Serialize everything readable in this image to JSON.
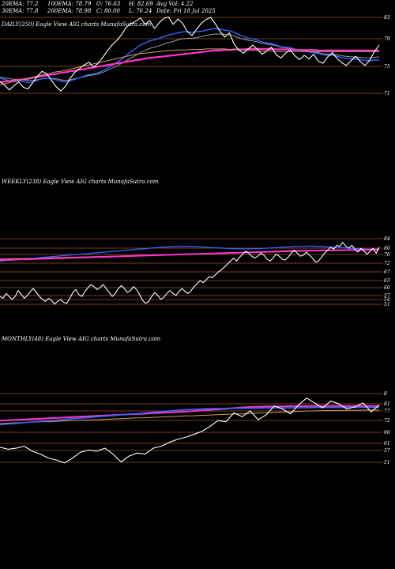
{
  "header": {
    "ema20": "20EMA: 77.2",
    "ema100": "100EMA: 78.79",
    "open": "O: 76.63",
    "high": "H: 82.69",
    "avgvol": "Avg Vol: 4.22",
    "ema30": "30EMA: 77.8",
    "ema200": "200EMA: 78.98",
    "close": "C: 80.00",
    "low": "L: 76.24",
    "date": "Date: Fri 18 Jul 2025"
  },
  "colors": {
    "background": "#000000",
    "price": "#ffffff",
    "ema_blue": "#3366ff",
    "ema_magenta": "#ff33cc",
    "ema_tan": "#c8a060",
    "ema_gray": "#aaaaaa",
    "gridline": "#a0522d"
  },
  "chart_data": [
    {
      "type": "line",
      "title": "DAILY(250) Eagle  View AIG charts MunafaSutra.com",
      "y_ticks": [
        83,
        79,
        75,
        71
      ],
      "ylim": [
        69.5,
        85.5
      ],
      "series": [
        {
          "values": [
            73.2,
            72.5,
            71.6,
            72.4,
            73.1,
            72.1,
            71.8,
            73.0,
            74.2,
            75.1,
            74.6,
            73.4,
            72.2,
            71.4,
            72.3,
            73.8,
            74.9,
            75.6,
            76.3,
            76.8,
            75.9,
            76.6,
            77.8,
            79.0,
            80.1,
            80.9,
            82.0,
            83.4,
            84.0,
            84.5,
            85.1,
            83.9,
            84.6,
            83.1,
            84.2,
            85.0,
            85.3,
            83.9,
            84.9,
            84.1,
            82.6,
            81.8,
            83.0,
            84.1,
            84.8,
            85.2,
            84.0,
            82.6,
            81.5,
            82.3,
            80.2,
            79.1,
            78.5,
            79.3,
            80.0,
            79.2,
            78.3,
            78.9,
            79.6,
            78.2,
            77.6,
            78.5,
            79.1,
            78.0,
            77.3,
            78.1,
            77.4,
            78.3,
            77.0,
            76.6,
            77.8,
            78.6,
            77.5,
            76.7,
            76.2,
            77.1,
            77.9,
            76.9,
            76.2,
            77.2,
            78.8,
            80.0
          ]
        },
        {
          "values": [
            72.5,
            72.8,
            73.0,
            73.2,
            73.4,
            73.6,
            73.8,
            74.0,
            74.2,
            74.4,
            74.6,
            74.8,
            75.0,
            75.1,
            75.3,
            75.5,
            75.7,
            75.9,
            76.1,
            76.3,
            76.5,
            76.7,
            76.9,
            77.1,
            77.3,
            77.5,
            77.7,
            77.9,
            78.1,
            78.3,
            78.4,
            78.5,
            78.6,
            78.7,
            78.8,
            78.9,
            79.0,
            79.0,
            79.1,
            79.1,
            79.1,
            79.2,
            79.2,
            79.2,
            79.3,
            79.3,
            79.3,
            79.3,
            79.3,
            79.2,
            79.2,
            79.1,
            79.1,
            79.0,
            79.0,
            79.0,
            78.9,
            78.9,
            78.9,
            78.8,
            78.8,
            78.8,
            78.8,
            78.8,
            78.8,
            78.8,
            78.8,
            78.8,
            78.8,
            78.8,
            78.8,
            78.8,
            78.8,
            78.8,
            78.8,
            78.8,
            78.8,
            78.8,
            78.8,
            78.8,
            78.8,
            78.79
          ]
        },
        {
          "values": [
            73.0,
            73.2,
            73.3,
            73.4,
            73.5,
            73.6,
            73.7,
            73.9,
            74.0,
            74.2,
            74.3,
            74.5,
            74.6,
            74.8,
            74.9,
            75.1,
            75.2,
            75.4,
            75.5,
            75.7,
            75.8,
            76.0,
            76.1,
            76.3,
            76.4,
            76.6,
            76.7,
            76.9,
            77.0,
            77.2,
            77.3,
            77.5,
            77.6,
            77.7,
            77.8,
            77.9,
            78.0,
            78.1,
            78.2,
            78.3,
            78.4,
            78.5,
            78.6,
            78.7,
            78.8,
            78.9,
            79.0,
            79.0,
            79.1,
            79.1,
            79.2,
            79.2,
            79.2,
            79.3,
            79.3,
            79.3,
            79.3,
            79.3,
            79.3,
            79.2,
            79.2,
            79.2,
            79.2,
            79.1,
            79.1,
            79.1,
            79.1,
            79.1,
            79.0,
            79.0,
            79.0,
            79.0,
            79.0,
            79.0,
            79.0,
            79.0,
            79.0,
            79.0,
            79.0,
            78.98,
            78.98,
            78.98
          ]
        },
        {
          "values": [
            73.8,
            73.6,
            73.3,
            73.2,
            73.3,
            73.2,
            73.0,
            73.1,
            73.4,
            73.7,
            73.8,
            73.7,
            73.5,
            73.2,
            73.1,
            73.3,
            73.6,
            73.9,
            74.2,
            74.5,
            74.6,
            74.8,
            75.2,
            75.7,
            76.2,
            76.8,
            77.4,
            78.1,
            78.8,
            79.4,
            80.0,
            80.4,
            80.8,
            81.0,
            81.3,
            81.6,
            81.9,
            82.1,
            82.3,
            82.5,
            82.5,
            82.4,
            82.5,
            82.6,
            82.8,
            83.0,
            83.1,
            83.0,
            82.8,
            82.7,
            82.4,
            82.0,
            81.6,
            81.3,
            81.2,
            80.9,
            80.6,
            80.4,
            80.3,
            80.0,
            79.7,
            79.6,
            79.5,
            79.3,
            79.0,
            78.9,
            78.7,
            78.6,
            78.4,
            78.2,
            78.1,
            78.1,
            77.9,
            77.7,
            77.5,
            77.4,
            77.4,
            77.3,
            77.1,
            77.1,
            77.2,
            77.2
          ]
        },
        {
          "values": [
            74.0,
            73.9,
            73.7,
            73.6,
            73.6,
            73.5,
            73.4,
            73.4,
            73.5,
            73.7,
            73.8,
            73.8,
            73.7,
            73.5,
            73.4,
            73.5,
            73.7,
            73.9,
            74.1,
            74.3,
            74.4,
            74.6,
            74.9,
            75.3,
            75.7,
            76.1,
            76.6,
            77.1,
            77.6,
            78.1,
            78.6,
            79.0,
            79.4,
            79.6,
            79.9,
            80.2,
            80.5,
            80.7,
            81.0,
            81.2,
            81.3,
            81.3,
            81.4,
            81.6,
            81.8,
            82.0,
            82.1,
            82.1,
            82.0,
            81.9,
            81.7,
            81.4,
            81.1,
            80.9,
            80.8,
            80.6,
            80.3,
            80.2,
            80.1,
            79.9,
            79.6,
            79.5,
            79.4,
            79.3,
            79.1,
            79.0,
            78.8,
            78.7,
            78.6,
            78.4,
            78.3,
            78.3,
            78.2,
            78.0,
            77.9,
            77.8,
            77.8,
            77.7,
            77.6,
            77.6,
            77.7,
            77.8
          ]
        }
      ]
    },
    {
      "type": "line",
      "title": "WEEKLY(238) Eagle  View AIG charts MunafaSutra.com",
      "y_ticks": [
        84,
        80,
        76,
        72,
        67,
        63,
        60,
        57,
        54,
        51
      ],
      "ylim": [
        49,
        86
      ],
      "series": [
        {
          "values": [
            55.0,
            54.0,
            56.5,
            55.0,
            53.5,
            55.0,
            58.0,
            56.0,
            54.0,
            55.5,
            57.5,
            59.0,
            57.0,
            55.0,
            53.5,
            52.5,
            54.0,
            53.0,
            51.0,
            52.5,
            53.5,
            52.0,
            51.5,
            54.0,
            57.0,
            58.5,
            56.0,
            55.0,
            57.5,
            59.5,
            61.0,
            60.0,
            58.5,
            59.5,
            61.0,
            59.0,
            57.0,
            55.0,
            56.5,
            59.0,
            60.5,
            59.0,
            57.0,
            58.0,
            60.0,
            58.5,
            56.0,
            53.0,
            51.5,
            52.5,
            55.0,
            57.0,
            55.5,
            53.5,
            54.5,
            56.5,
            58.0,
            56.5,
            55.5,
            57.5,
            59.0,
            57.5,
            56.5,
            58.0,
            60.0,
            61.5,
            63.0,
            62.0,
            63.5,
            65.0,
            64.5,
            66.0,
            67.5,
            68.5,
            70.0,
            71.5,
            73.0,
            74.5,
            73.0,
            75.0,
            76.5,
            78.0,
            77.0,
            75.5,
            74.5,
            75.5,
            77.0,
            76.0,
            74.0,
            73.0,
            74.5,
            76.5,
            75.5,
            74.0,
            73.5,
            75.0,
            77.0,
            78.5,
            77.0,
            75.5,
            76.0,
            77.5,
            76.0,
            74.5,
            72.5,
            73.0,
            75.0,
            77.0,
            78.5,
            80.0,
            79.0,
            81.0,
            80.5,
            82.5,
            80.5,
            79.5,
            81.0,
            79.0,
            77.5,
            79.5,
            78.0,
            76.5,
            78.0,
            79.5,
            77.0,
            80.0
          ]
        },
        {
          "values": [
            73.5,
            73.6,
            73.7,
            73.8,
            73.9,
            74.0,
            74.1,
            74.2,
            74.3,
            74.4,
            74.5,
            74.6,
            74.7,
            74.8,
            74.9,
            75.0,
            75.1,
            75.2,
            75.3,
            75.4,
            75.5,
            75.6,
            75.7,
            75.8,
            75.9,
            76.0,
            76.1,
            76.2,
            76.3,
            76.4,
            76.5,
            76.6,
            76.7,
            76.8,
            76.9,
            77.0,
            77.1,
            77.2,
            77.3,
            77.4,
            77.5,
            77.6,
            77.7,
            77.8,
            77.9,
            78.0,
            78.1,
            78.2,
            78.2,
            78.3,
            78.3,
            78.4,
            78.4,
            78.5,
            78.5,
            78.6,
            78.6,
            78.7,
            78.7,
            78.8,
            78.8
          ]
        },
        {
          "values": [
            73.0,
            73.3,
            73.6,
            73.9,
            74.2,
            74.5,
            74.8,
            75.1,
            75.4,
            75.7,
            76.0,
            76.3,
            76.6,
            76.9,
            77.2,
            77.5,
            77.8,
            78.1,
            78.4,
            78.7,
            79.0,
            79.3,
            79.6,
            79.9,
            80.1,
            80.3,
            80.4,
            80.5,
            80.4,
            80.2,
            80.0,
            79.8,
            79.6,
            79.4,
            79.3,
            79.2,
            79.2,
            79.3,
            79.4,
            79.6,
            79.8,
            80.0,
            80.2,
            80.4,
            80.5,
            80.6,
            80.5,
            80.3,
            80.1,
            79.9,
            79.7,
            79.5,
            79.3,
            79.1,
            79.0,
            79.0
          ]
        },
        {
          "values": [
            74.0,
            74.1,
            74.2,
            74.3,
            74.4,
            74.5,
            74.6,
            74.7,
            74.8,
            74.9,
            75.0,
            75.1,
            75.2,
            75.3,
            75.4,
            75.5,
            75.6,
            75.7,
            75.8,
            75.9,
            76.0,
            76.1,
            76.2,
            76.3,
            76.4,
            76.5,
            76.6,
            76.7,
            76.8,
            76.9,
            77.0,
            77.1,
            77.2,
            77.3,
            77.4,
            77.5,
            77.6,
            77.7,
            77.8,
            77.9,
            78.0,
            78.1,
            78.2,
            78.3,
            78.4,
            78.5,
            78.6,
            78.7,
            78.8,
            78.9,
            79.0
          ]
        }
      ]
    },
    {
      "type": "line",
      "title": "MONTHLY(48) Eagle  View AIG charts MunafaSutra.com",
      "y_ticks": [
        8,
        81,
        77,
        72,
        66,
        61,
        57,
        51
      ],
      "ylim": [
        48,
        87
      ],
      "series": [
        {
          "values": [
            58.5,
            57.5,
            58.0,
            59.0,
            56.5,
            55.0,
            53.0,
            52.0,
            50.5,
            53.0,
            56.0,
            57.0,
            56.5,
            58.0,
            55.0,
            51.0,
            54.0,
            55.5,
            55.0,
            58.0,
            59.0,
            61.0,
            62.5,
            63.5,
            65.0,
            66.5,
            69.0,
            72.0,
            71.5,
            76.0,
            74.0,
            77.0,
            72.5,
            75.0,
            79.5,
            78.0,
            75.5,
            80.0,
            83.5,
            81.0,
            78.5,
            82.0,
            80.5,
            78.0,
            79.0,
            81.0,
            76.5,
            80.0
          ]
        },
        {
          "values": [
            70.0,
            70.3,
            70.6,
            71.0,
            71.3,
            71.6,
            72.0,
            72.3,
            72.6,
            73.0,
            73.3,
            73.6,
            74.0,
            74.3,
            74.6,
            75.0,
            75.3,
            75.6,
            76.0,
            76.3,
            76.6,
            77.0,
            77.3,
            77.6,
            77.8,
            78.0,
            78.1,
            78.2,
            78.2,
            78.3,
            78.3,
            78.4,
            78.4,
            78.5,
            78.5,
            78.5,
            78.6,
            78.6,
            78.6,
            78.7,
            78.7,
            78.7,
            78.7,
            78.8,
            78.8,
            78.8,
            78.8,
            78.8
          ]
        },
        {
          "values": [
            72.0,
            72.2,
            72.4,
            72.6,
            72.8,
            73.0,
            73.2,
            73.4,
            73.6,
            73.8,
            74.0,
            74.2,
            74.4,
            74.6,
            74.8,
            75.0,
            75.2,
            75.4,
            75.6,
            75.8,
            76.0,
            76.2,
            76.4,
            76.6,
            76.9,
            77.2,
            77.5,
            77.8,
            78.1,
            78.4,
            78.7,
            79.0,
            79.1,
            79.2,
            79.3,
            79.3,
            79.4,
            79.4,
            79.4,
            79.5,
            79.5,
            79.5,
            79.5,
            79.5,
            79.5,
            79.5,
            79.4,
            79.4
          ]
        },
        {
          "values": [
            70.5,
            70.7,
            70.9,
            71.0,
            71.2,
            71.4,
            71.5,
            71.7,
            71.9,
            72.0,
            72.2,
            72.4,
            72.5,
            72.7,
            72.9,
            73.0,
            73.2,
            73.4,
            73.5,
            73.7,
            73.9,
            74.0,
            74.2,
            74.4,
            74.5,
            74.7,
            74.9,
            75.0,
            75.2,
            75.4,
            75.5,
            75.7,
            75.9,
            76.0,
            76.2,
            76.4,
            76.5,
            76.7,
            76.9,
            77.0,
            77.1,
            77.2,
            77.2,
            77.3,
            77.3,
            77.4,
            77.4,
            77.4
          ]
        }
      ]
    }
  ]
}
